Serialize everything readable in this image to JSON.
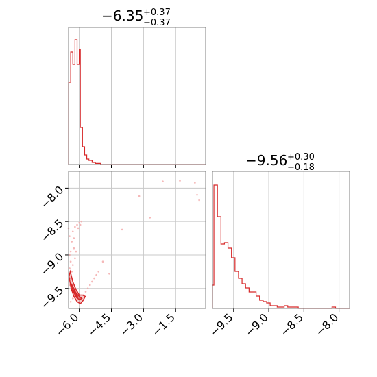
{
  "colors": {
    "series": "#d62728",
    "scatter": "#f2a6a6",
    "grid": "#c8c8c8",
    "frame": "#808080"
  },
  "titles": {
    "p1": {
      "median": "−6.35",
      "plus": "+0.37",
      "minus": "−0.37"
    },
    "p2": {
      "median": "−9.56",
      "plus": "+0.30",
      "minus": "−0.18"
    }
  },
  "chart_data": [
    {
      "type": "histogram",
      "panel": "marginal-p1",
      "xlim": [
        -6.5,
        -0.1
      ],
      "xticks": [
        -6.0,
        -4.5,
        -3.0,
        -1.5
      ],
      "grid": true,
      "bins": [
        {
          "x0": -6.5,
          "x1": -6.4,
          "h": 0.6
        },
        {
          "x0": -6.4,
          "x1": -6.3,
          "h": 0.82
        },
        {
          "x0": -6.3,
          "x1": -6.2,
          "h": 0.73
        },
        {
          "x0": -6.2,
          "x1": -6.1,
          "h": 0.91
        },
        {
          "x0": -6.1,
          "x1": -6.0,
          "h": 0.73
        },
        {
          "x0": -6.0,
          "x1": -5.95,
          "h": 0.84
        },
        {
          "x0": -5.95,
          "x1": -5.85,
          "h": 0.27
        },
        {
          "x0": -5.85,
          "x1": -5.75,
          "h": 0.13
        },
        {
          "x0": -5.75,
          "x1": -5.65,
          "h": 0.07
        },
        {
          "x0": -5.65,
          "x1": -5.55,
          "h": 0.04
        },
        {
          "x0": -5.55,
          "x1": -5.4,
          "h": 0.03
        },
        {
          "x0": -5.4,
          "x1": -5.25,
          "h": 0.015
        },
        {
          "x0": -5.25,
          "x1": -5.0,
          "h": 0.008
        },
        {
          "x0": -5.0,
          "x1": -0.1,
          "h": 0.0
        }
      ]
    },
    {
      "type": "scatter",
      "panel": "joint-p1-p2",
      "xlim": [
        -6.5,
        -0.1
      ],
      "ylim": [
        -9.8,
        -7.75
      ],
      "xticks": [
        -6.0,
        -4.5,
        -3.0,
        -1.5
      ],
      "yticks": [
        -8.0,
        -8.5,
        -9.0,
        -9.5
      ],
      "grid": true,
      "points": [
        [
          -6.4,
          -9.7
        ],
        [
          -6.3,
          -9.65
        ],
        [
          -6.2,
          -9.62
        ],
        [
          -6.1,
          -9.55
        ],
        [
          -6.0,
          -9.6
        ],
        [
          -5.9,
          -9.65
        ],
        [
          -5.8,
          -9.6
        ],
        [
          -5.7,
          -9.55
        ],
        [
          -5.6,
          -9.5
        ],
        [
          -5.5,
          -9.45
        ],
        [
          -5.4,
          -9.4
        ],
        [
          -5.3,
          -9.35
        ],
        [
          -5.2,
          -9.3
        ],
        [
          -5.1,
          -9.25
        ],
        [
          -4.9,
          -9.1
        ],
        [
          -4.6,
          -9.28
        ],
        [
          -4.0,
          -8.62
        ],
        [
          -3.2,
          -8.12
        ],
        [
          -2.7,
          -8.44
        ],
        [
          -2.1,
          -7.9
        ],
        [
          -1.3,
          -7.89
        ],
        [
          -0.6,
          -7.92
        ],
        [
          -0.5,
          -8.1
        ],
        [
          -0.4,
          -8.18
        ],
        [
          -6.45,
          -8.72
        ],
        [
          -6.35,
          -8.8
        ],
        [
          -6.3,
          -8.65
        ],
        [
          -6.25,
          -8.9
        ],
        [
          -6.2,
          -8.58
        ],
        [
          -6.15,
          -8.95
        ],
        [
          -6.1,
          -8.55
        ],
        [
          -6.05,
          -8.6
        ],
        [
          -6.0,
          -8.52
        ],
        [
          -5.95,
          -8.55
        ],
        [
          -6.45,
          -9.0
        ],
        [
          -6.4,
          -9.1
        ],
        [
          -6.45,
          -9.2
        ],
        [
          -6.35,
          -9.25
        ],
        [
          -6.3,
          -9.15
        ],
        [
          -6.4,
          -9.35
        ],
        [
          -6.45,
          -9.45
        ],
        [
          -6.2,
          -9.05
        ],
        [
          -5.9,
          -8.5
        ],
        [
          -6.5,
          -8.6
        ],
        [
          -6.4,
          -8.95
        ],
        [
          -6.25,
          -8.75
        ]
      ],
      "contours": [
        [
          [
            -6.48,
            -9.32
          ],
          [
            -6.38,
            -9.5
          ],
          [
            -6.25,
            -9.62
          ],
          [
            -6.1,
            -9.7
          ],
          [
            -5.95,
            -9.73
          ],
          [
            -5.82,
            -9.68
          ],
          [
            -5.72,
            -9.62
          ],
          [
            -5.85,
            -9.6
          ],
          [
            -6.0,
            -9.6
          ],
          [
            -6.15,
            -9.52
          ],
          [
            -6.3,
            -9.4
          ],
          [
            -6.42,
            -9.25
          ],
          [
            -6.48,
            -9.32
          ]
        ],
        [
          [
            -6.4,
            -9.42
          ],
          [
            -6.28,
            -9.55
          ],
          [
            -6.12,
            -9.64
          ],
          [
            -5.98,
            -9.67
          ],
          [
            -5.88,
            -9.65
          ],
          [
            -6.0,
            -9.62
          ],
          [
            -6.15,
            -9.57
          ],
          [
            -6.3,
            -9.47
          ],
          [
            -6.4,
            -9.42
          ]
        ],
        [
          [
            -6.3,
            -9.52
          ],
          [
            -6.18,
            -9.6
          ],
          [
            -6.06,
            -9.64
          ],
          [
            -6.12,
            -9.59
          ],
          [
            -6.24,
            -9.53
          ],
          [
            -6.3,
            -9.52
          ]
        ]
      ]
    },
    {
      "type": "histogram",
      "panel": "marginal-p2",
      "xlim": [
        -9.8,
        -7.85
      ],
      "xticks": [
        -9.5,
        -9.0,
        -8.5,
        -8.0
      ],
      "grid": true,
      "bins": [
        {
          "x0": -9.8,
          "x1": -9.78,
          "h": 0.17
        },
        {
          "x0": -9.78,
          "x1": -9.73,
          "h": 0.9
        },
        {
          "x0": -9.73,
          "x1": -9.68,
          "h": 0.67
        },
        {
          "x0": -9.68,
          "x1": -9.63,
          "h": 0.47
        },
        {
          "x0": -9.63,
          "x1": -9.58,
          "h": 0.48
        },
        {
          "x0": -9.58,
          "x1": -9.53,
          "h": 0.44
        },
        {
          "x0": -9.53,
          "x1": -9.48,
          "h": 0.37
        },
        {
          "x0": -9.48,
          "x1": -9.43,
          "h": 0.27
        },
        {
          "x0": -9.43,
          "x1": -9.38,
          "h": 0.22
        },
        {
          "x0": -9.38,
          "x1": -9.33,
          "h": 0.18
        },
        {
          "x0": -9.33,
          "x1": -9.28,
          "h": 0.15
        },
        {
          "x0": -9.28,
          "x1": -9.18,
          "h": 0.12
        },
        {
          "x0": -9.18,
          "x1": -9.13,
          "h": 0.09
        },
        {
          "x0": -9.13,
          "x1": -9.08,
          "h": 0.06
        },
        {
          "x0": -9.08,
          "x1": -9.03,
          "h": 0.05
        },
        {
          "x0": -9.03,
          "x1": -8.98,
          "h": 0.04
        },
        {
          "x0": -8.98,
          "x1": -8.88,
          "h": 0.02
        },
        {
          "x0": -8.88,
          "x1": -8.78,
          "h": 0.01
        },
        {
          "x0": -8.78,
          "x1": -8.73,
          "h": 0.02
        },
        {
          "x0": -8.73,
          "x1": -8.58,
          "h": 0.01
        },
        {
          "x0": -8.58,
          "x1": -8.1,
          "h": 0.0
        },
        {
          "x0": -8.1,
          "x1": -8.05,
          "h": 0.01
        },
        {
          "x0": -8.05,
          "x1": -7.85,
          "h": 0.0
        }
      ]
    }
  ]
}
